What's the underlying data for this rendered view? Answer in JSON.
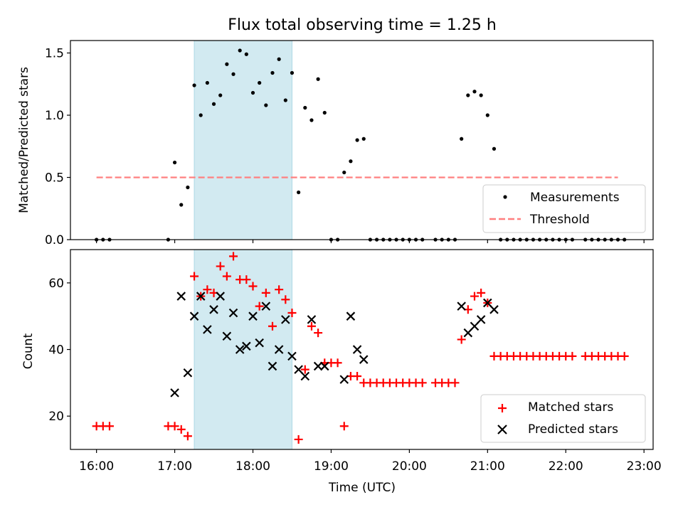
{
  "chart_data": [
    {
      "type": "scatter",
      "title": "Flux total observing time = 1.25 h",
      "ylabel": "Matched/Predicted stars",
      "xlabel": "",
      "xlim": [
        "15:40",
        "23:07"
      ],
      "ylim": [
        0,
        1.6
      ],
      "yticks": [
        0,
        0.5,
        1.0,
        1.5
      ],
      "ytick_labels": [
        "0.0",
        "0.5",
        "1.0",
        "1.5"
      ],
      "shaded_interval": [
        "17:15",
        "18:30"
      ],
      "shade_color": "#add8e6",
      "legend": {
        "position": "lower-right",
        "entries": [
          "Measurements",
          "Threshold"
        ]
      },
      "series": [
        {
          "name": "Measurements",
          "marker": "dot",
          "color": "#000000",
          "x": [
            "16:00",
            "16:05",
            "16:10",
            "16:55",
            "17:00",
            "17:05",
            "17:10",
            "17:15",
            "17:20",
            "17:25",
            "17:30",
            "17:35",
            "17:40",
            "17:45",
            "17:50",
            "17:55",
            "18:00",
            "18:05",
            "18:10",
            "18:15",
            "18:20",
            "18:25",
            "18:30",
            "18:35",
            "18:40",
            "18:45",
            "18:50",
            "18:55",
            "19:00",
            "19:05",
            "19:10",
            "19:15",
            "19:20",
            "19:25",
            "19:30",
            "19:35",
            "19:40",
            "19:45",
            "19:50",
            "19:55",
            "20:00",
            "20:05",
            "20:10",
            "20:20",
            "20:25",
            "20:30",
            "20:35",
            "20:40",
            "20:45",
            "20:50",
            "20:55",
            "21:00",
            "21:05",
            "21:10",
            "21:15",
            "21:20",
            "21:25",
            "21:30",
            "21:35",
            "21:40",
            "21:45",
            "21:50",
            "21:55",
            "22:00",
            "22:05",
            "22:15",
            "22:20",
            "22:25",
            "22:30",
            "22:35",
            "22:40",
            "22:45"
          ],
          "y": [
            0,
            0,
            0,
            0,
            0.62,
            0.28,
            0.42,
            1.24,
            1.0,
            1.26,
            1.09,
            1.16,
            1.41,
            1.33,
            1.52,
            1.49,
            1.18,
            1.26,
            1.08,
            1.34,
            1.45,
            1.12,
            1.34,
            0.38,
            1.06,
            0.96,
            1.29,
            1.02,
            0,
            0,
            0.54,
            0.63,
            0.8,
            0.81,
            0,
            0,
            0,
            0,
            0,
            0,
            0,
            0,
            0,
            0,
            0,
            0,
            0,
            0.81,
            1.16,
            1.19,
            1.16,
            1.0,
            0.73,
            0,
            0,
            0,
            0,
            0,
            0,
            0,
            0,
            0,
            0,
            0,
            0,
            0,
            0,
            0,
            0,
            0,
            0,
            0
          ]
        },
        {
          "name": "Threshold",
          "style": "dashed",
          "color": "#ff7f7f",
          "x": [
            "16:00",
            "22:40"
          ],
          "y": [
            0.5,
            0.5
          ]
        }
      ]
    },
    {
      "type": "scatter",
      "title": "",
      "ylabel": "Count",
      "xlabel": "Time (UTC)",
      "xlim": [
        "15:40",
        "23:07"
      ],
      "ylim": [
        10,
        70
      ],
      "yticks": [
        20,
        40,
        60
      ],
      "ytick_labels": [
        "20",
        "40",
        "60"
      ],
      "xticks": [
        "16:00",
        "17:00",
        "18:00",
        "19:00",
        "20:00",
        "21:00",
        "22:00",
        "23:00"
      ],
      "shaded_interval": [
        "17:15",
        "18:30"
      ],
      "shade_color": "#add8e6",
      "legend": {
        "position": "lower-right",
        "entries": [
          "Matched stars",
          "Predicted stars"
        ]
      },
      "series": [
        {
          "name": "Matched stars",
          "marker": "plus",
          "color": "#ff0000",
          "x": [
            "16:00",
            "16:05",
            "16:10",
            "16:55",
            "17:00",
            "17:05",
            "17:10",
            "17:15",
            "17:20",
            "17:25",
            "17:30",
            "17:35",
            "17:40",
            "17:45",
            "17:50",
            "17:55",
            "18:00",
            "18:05",
            "18:10",
            "18:15",
            "18:20",
            "18:25",
            "18:30",
            "18:35",
            "18:40",
            "18:45",
            "18:50",
            "18:55",
            "19:00",
            "19:05",
            "19:10",
            "19:15",
            "19:20",
            "19:25",
            "19:30",
            "19:35",
            "19:40",
            "19:45",
            "19:50",
            "19:55",
            "20:00",
            "20:05",
            "20:10",
            "20:20",
            "20:25",
            "20:30",
            "20:35",
            "20:40",
            "20:45",
            "20:50",
            "20:55",
            "21:00",
            "21:05",
            "21:10",
            "21:15",
            "21:20",
            "21:25",
            "21:30",
            "21:35",
            "21:40",
            "21:45",
            "21:50",
            "21:55",
            "22:00",
            "22:05",
            "22:15",
            "22:20",
            "22:25",
            "22:30",
            "22:35",
            "22:40",
            "22:45"
          ],
          "y": [
            17,
            17,
            17,
            17,
            17,
            16,
            14,
            62,
            56,
            58,
            57,
            65,
            62,
            68,
            61,
            61,
            59,
            53,
            57,
            47,
            58,
            55,
            51,
            13,
            34,
            47,
            45,
            36,
            36,
            36,
            17,
            32,
            32,
            30,
            30,
            30,
            30,
            30,
            30,
            30,
            30,
            30,
            30,
            30,
            30,
            30,
            30,
            43,
            52,
            56,
            57,
            54,
            38,
            38,
            38,
            38,
            38,
            38,
            38,
            38,
            38,
            38,
            38,
            38,
            38,
            38,
            38,
            38,
            38,
            38,
            38,
            38
          ]
        },
        {
          "name": "Predicted stars",
          "marker": "x",
          "color": "#000000",
          "x": [
            "17:00",
            "17:05",
            "17:10",
            "17:15",
            "17:20",
            "17:25",
            "17:30",
            "17:35",
            "17:40",
            "17:45",
            "17:50",
            "17:55",
            "18:00",
            "18:05",
            "18:10",
            "18:15",
            "18:20",
            "18:25",
            "18:30",
            "18:35",
            "18:40",
            "18:45",
            "18:50",
            "18:55",
            "19:10",
            "19:15",
            "19:20",
            "19:25",
            "20:40",
            "20:45",
            "20:50",
            "20:55",
            "21:00",
            "21:05"
          ],
          "y": [
            27,
            56,
            33,
            50,
            56,
            46,
            52,
            56,
            44,
            51,
            40,
            41,
            50,
            42,
            53,
            35,
            40,
            49,
            38,
            34,
            32,
            49,
            35,
            35,
            31,
            50,
            40,
            37,
            53,
            45,
            47,
            49,
            54,
            52
          ]
        }
      ]
    }
  ]
}
